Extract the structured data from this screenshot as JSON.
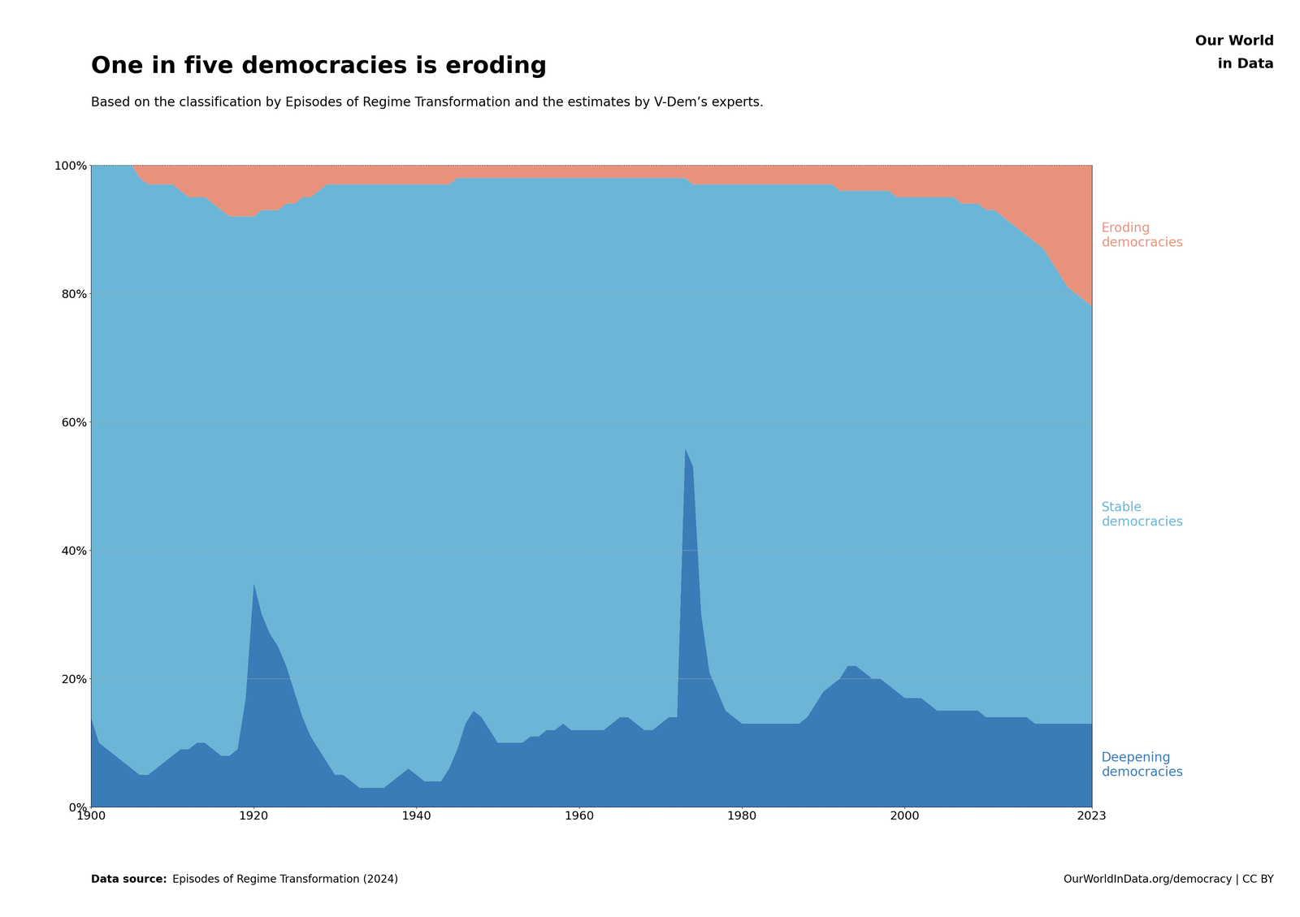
{
  "chart_data": {
    "type": "area",
    "stacked": true,
    "title": "One in five democracies is eroding",
    "subtitle": "Based on the classification by Episodes of Regime Transformation and the estimates by V-Dem’s experts.",
    "annotations": [
      "Data source:",
      "Episodes of Regime Transformation (2024)",
      "OurWorldInData.org/democracy | CC BY",
      "Our World",
      "in Data"
    ],
    "x": [
      1900,
      1901,
      1902,
      1903,
      1904,
      1905,
      1906,
      1907,
      1908,
      1909,
      1910,
      1911,
      1912,
      1913,
      1914,
      1915,
      1916,
      1917,
      1918,
      1919,
      1920,
      1921,
      1922,
      1923,
      1924,
      1925,
      1926,
      1927,
      1928,
      1929,
      1930,
      1931,
      1932,
      1933,
      1934,
      1935,
      1936,
      1937,
      1938,
      1939,
      1940,
      1941,
      1942,
      1943,
      1944,
      1945,
      1946,
      1947,
      1948,
      1949,
      1950,
      1951,
      1952,
      1953,
      1954,
      1955,
      1956,
      1957,
      1958,
      1959,
      1960,
      1961,
      1962,
      1963,
      1964,
      1965,
      1966,
      1967,
      1968,
      1969,
      1970,
      1971,
      1972,
      1973,
      1974,
      1975,
      1976,
      1977,
      1978,
      1979,
      1980,
      1981,
      1982,
      1983,
      1984,
      1985,
      1986,
      1987,
      1988,
      1989,
      1990,
      1991,
      1992,
      1993,
      1994,
      1995,
      1996,
      1997,
      1998,
      1999,
      2000,
      2001,
      2002,
      2003,
      2004,
      2005,
      2006,
      2007,
      2008,
      2009,
      2010,
      2011,
      2012,
      2013,
      2014,
      2015,
      2016,
      2017,
      2018,
      2019,
      2020,
      2021,
      2022,
      2023
    ],
    "series": [
      {
        "name": "Deepening\ndemocracies",
        "color": "#3A7CB8",
        "values": [
          14,
          10,
          9,
          8,
          7,
          6,
          5,
          5,
          6,
          7,
          8,
          9,
          9,
          10,
          10,
          9,
          8,
          8,
          9,
          17,
          35,
          30,
          27,
          25,
          22,
          18,
          14,
          11,
          9,
          7,
          5,
          5,
          4,
          3,
          3,
          3,
          3,
          4,
          5,
          6,
          5,
          4,
          4,
          4,
          6,
          9,
          13,
          15,
          14,
          12,
          10,
          10,
          10,
          10,
          11,
          11,
          12,
          12,
          13,
          12,
          12,
          12,
          12,
          12,
          13,
          14,
          14,
          13,
          12,
          12,
          13,
          14,
          14,
          56,
          53,
          30,
          21,
          18,
          15,
          14,
          13,
          13,
          13,
          13,
          13,
          13,
          13,
          13,
          14,
          16,
          18,
          19,
          20,
          22,
          22,
          21,
          20,
          20,
          19,
          18,
          17,
          17,
          17,
          16,
          15,
          15,
          15,
          15,
          15,
          15,
          14,
          14,
          14,
          14,
          14,
          14,
          13,
          13,
          13,
          13,
          13,
          13,
          13,
          13
        ]
      },
      {
        "name": "Stable\ndemocracies",
        "color": "#6BB5D6",
        "values": [
          86,
          90,
          91,
          92,
          93,
          94,
          93,
          92,
          91,
          90,
          89,
          87,
          86,
          85,
          85,
          85,
          85,
          84,
          83,
          75,
          57,
          63,
          66,
          68,
          72,
          76,
          81,
          84,
          87,
          90,
          92,
          92,
          93,
          94,
          94,
          94,
          94,
          93,
          92,
          91,
          92,
          93,
          93,
          93,
          91,
          89,
          85,
          83,
          84,
          86,
          88,
          88,
          88,
          88,
          87,
          87,
          86,
          86,
          85,
          86,
          86,
          86,
          86,
          86,
          85,
          84,
          84,
          85,
          86,
          86,
          85,
          84,
          84,
          42,
          44,
          67,
          76,
          79,
          82,
          83,
          84,
          84,
          84,
          84,
          84,
          84,
          84,
          84,
          83,
          81,
          79,
          78,
          76,
          74,
          74,
          75,
          76,
          76,
          77,
          77,
          78,
          78,
          78,
          79,
          80,
          80,
          80,
          79,
          79,
          79,
          79,
          79,
          78,
          77,
          76,
          75,
          75,
          74,
          72,
          70,
          68,
          67,
          66,
          65
        ]
      },
      {
        "name": "Eroding\ndemocracies",
        "color": "#E8927C",
        "values": [
          0,
          0,
          0,
          0,
          0,
          0,
          2,
          3,
          3,
          3,
          3,
          4,
          5,
          5,
          5,
          6,
          7,
          8,
          8,
          8,
          8,
          7,
          7,
          7,
          6,
          6,
          5,
          5,
          4,
          3,
          3,
          3,
          3,
          3,
          3,
          3,
          3,
          3,
          3,
          3,
          3,
          3,
          3,
          3,
          3,
          2,
          2,
          2,
          2,
          2,
          2,
          2,
          2,
          2,
          2,
          2,
          2,
          2,
          2,
          2,
          2,
          2,
          2,
          2,
          2,
          2,
          2,
          2,
          2,
          2,
          2,
          2,
          2,
          2,
          3,
          3,
          3,
          3,
          3,
          3,
          3,
          3,
          3,
          3,
          3,
          3,
          3,
          3,
          3,
          3,
          3,
          3,
          4,
          4,
          4,
          4,
          4,
          4,
          4,
          5,
          5,
          5,
          5,
          5,
          5,
          5,
          5,
          6,
          6,
          6,
          7,
          7,
          8,
          9,
          10,
          11,
          12,
          13,
          15,
          17,
          19,
          20,
          21,
          22
        ]
      }
    ],
    "xlim": [
      1900,
      2023
    ],
    "xticks": [
      1900,
      1920,
      1940,
      1960,
      1980,
      2000,
      2023
    ],
    "ylim": [
      0,
      100
    ],
    "yticks": [
      {
        "value": 0,
        "label": "0%"
      },
      {
        "value": 20,
        "label": "20%"
      },
      {
        "value": 40,
        "label": "40%"
      },
      {
        "value": 60,
        "label": "60%"
      },
      {
        "value": 80,
        "label": "80%"
      },
      {
        "value": 100,
        "label": "100%"
      }
    ],
    "grid": true
  }
}
